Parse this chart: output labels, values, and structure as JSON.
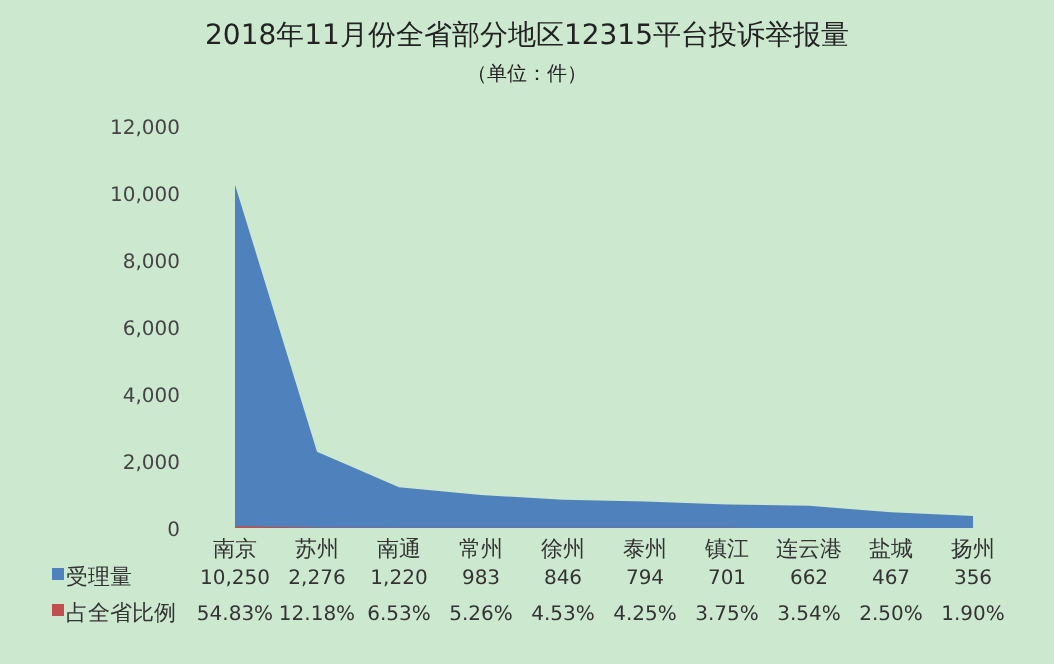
{
  "chart_data": {
    "type": "area",
    "title": "2018年11月份全省部分地区12315平台投诉举报量",
    "subtitle": "（单位：件）",
    "categories": [
      "南京",
      "苏州",
      "南通",
      "常州",
      "徐州",
      "泰州",
      "镇江",
      "连云港",
      "盐城",
      "扬州"
    ],
    "series": [
      {
        "name": "受理量",
        "color": "#4f81bd",
        "values": [
          10250,
          2276,
          1220,
          983,
          846,
          794,
          701,
          662,
          467,
          356
        ],
        "value_labels": [
          "10,250",
          "2,276",
          "1,220",
          "983",
          "846",
          "794",
          "701",
          "662",
          "467",
          "356"
        ]
      },
      {
        "name": "占全省比例",
        "color": "#c0504d",
        "values": [
          54.83,
          12.18,
          6.53,
          5.26,
          4.53,
          4.25,
          3.75,
          3.54,
          2.5,
          1.9
        ],
        "value_labels": [
          "54.83%",
          "12.18%",
          "6.53%",
          "5.26%",
          "4.53%",
          "4.25%",
          "3.75%",
          "3.54%",
          "2.50%",
          "1.90%"
        ]
      }
    ],
    "ylim": [
      0,
      12000
    ],
    "yticks": [
      {
        "value": 0,
        "label": "0"
      },
      {
        "value": 2000,
        "label": "2,000"
      },
      {
        "value": 4000,
        "label": "4,000"
      },
      {
        "value": 6000,
        "label": "6,000"
      },
      {
        "value": 8000,
        "label": "8,000"
      },
      {
        "value": 10000,
        "label": "10,000"
      },
      {
        "value": 12000,
        "label": "12,000"
      }
    ],
    "legend": "bottom"
  }
}
